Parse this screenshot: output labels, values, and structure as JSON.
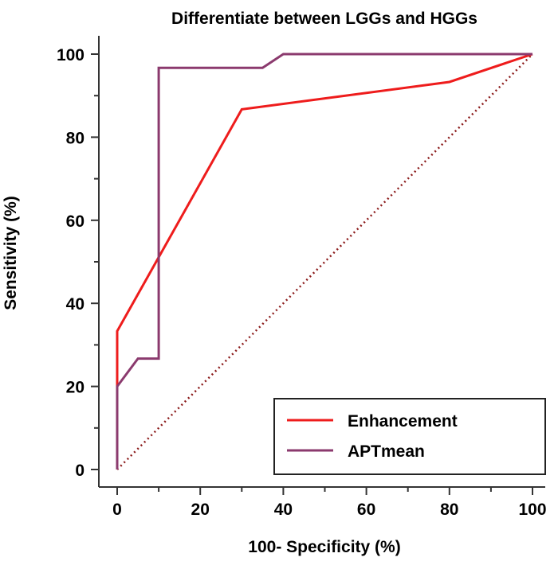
{
  "chart_data": {
    "type": "line",
    "title": "Differentiate between LGGs and HGGs",
    "xlabel": "100- Specificity (%)",
    "ylabel": "Sensitivity (%)",
    "xlim": [
      0,
      100
    ],
    "ylim": [
      0,
      100
    ],
    "x_ticks": [
      "0",
      "20",
      "40",
      "60",
      "80",
      "100"
    ],
    "y_ticks": [
      "0",
      "20",
      "40",
      "60",
      "80",
      "100"
    ],
    "grid": false,
    "legend_position": "bottom-right",
    "series": [
      {
        "name": "Enhancement",
        "color": "#ee1c1c",
        "style": "step-free",
        "points": [
          [
            0,
            0
          ],
          [
            0,
            33.3
          ],
          [
            30,
            86.7
          ],
          [
            80,
            93.3
          ],
          [
            100,
            100
          ]
        ]
      },
      {
        "name": "APTmean",
        "color": "#8b3a6e",
        "style": "step-free",
        "points": [
          [
            0,
            0
          ],
          [
            0,
            20
          ],
          [
            5,
            26.7
          ],
          [
            10,
            26.7
          ],
          [
            10,
            96.7
          ],
          [
            35,
            96.7
          ],
          [
            40,
            100
          ],
          [
            100,
            100
          ]
        ]
      },
      {
        "name": "",
        "color": "#8b1a1a",
        "style": "dotted",
        "points": [
          [
            0,
            0
          ],
          [
            100,
            100
          ]
        ]
      }
    ]
  }
}
